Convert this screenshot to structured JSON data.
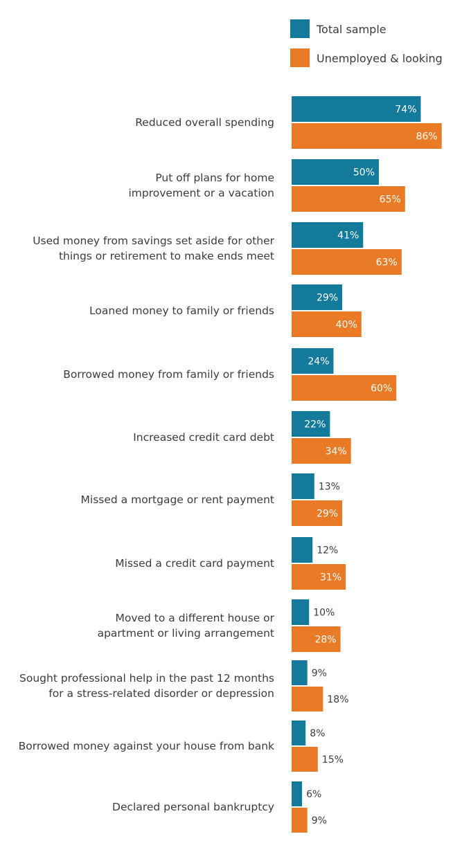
{
  "chart_data": {
    "type": "bar",
    "orientation": "horizontal",
    "legend_position": "top-right",
    "colors": {
      "total": "#137a9b",
      "unemployed": "#e97a26"
    },
    "series": [
      {
        "name": "Total sample",
        "values": [
          74,
          50,
          41,
          29,
          24,
          22,
          13,
          12,
          10,
          9,
          8,
          6
        ]
      },
      {
        "name": "Unemployed & looking",
        "values": [
          86,
          65,
          63,
          40,
          60,
          34,
          29,
          31,
          28,
          18,
          15,
          9
        ]
      }
    ],
    "categories": [
      [
        "Reduced overall spending"
      ],
      [
        "Put off plans for home",
        "improvement or a vacation"
      ],
      [
        "Used money from savings set aside for other",
        "things or retirement to make ends meet"
      ],
      [
        "Loaned money to family or friends"
      ],
      [
        "Borrowed money from family or friends"
      ],
      [
        "Increased credit card debt"
      ],
      [
        "Missed a mortgage or rent payment"
      ],
      [
        "Missed a credit card payment"
      ],
      [
        "Moved to a different house or",
        "apartment or living arrangement"
      ],
      [
        "Sought professional help in the past 12 months",
        "for a stress-related disorder or depression"
      ],
      [
        "Borrowed money against your house from bank"
      ],
      [
        "Declared personal bankruptcy"
      ]
    ],
    "value_suffix": "%"
  }
}
